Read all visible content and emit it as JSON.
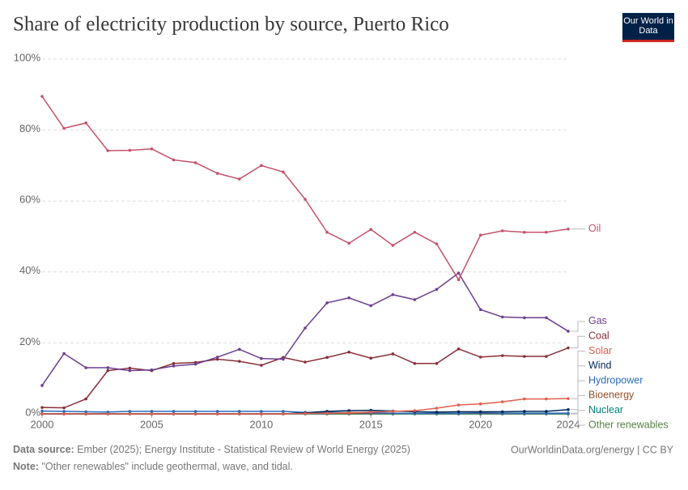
{
  "chart_data": {
    "type": "line",
    "title": "Share of electricity production by source, Puerto Rico",
    "logo": "Our World in Data",
    "x": [
      2000,
      2001,
      2002,
      2003,
      2004,
      2005,
      2006,
      2007,
      2008,
      2009,
      2010,
      2011,
      2012,
      2013,
      2014,
      2015,
      2016,
      2017,
      2018,
      2019,
      2020,
      2021,
      2022,
      2023,
      2024
    ],
    "xlim": [
      2000,
      2024
    ],
    "xticks": [
      2000,
      2005,
      2010,
      2015,
      2020,
      2024
    ],
    "ylim": [
      0,
      100
    ],
    "yticks": [
      {
        "value": 0,
        "label": "0%"
      },
      {
        "value": 20,
        "label": "20%"
      },
      {
        "value": 40,
        "label": "40%"
      },
      {
        "value": 60,
        "label": "60%"
      },
      {
        "value": 80,
        "label": "80%"
      },
      {
        "value": 100,
        "label": "100%"
      }
    ],
    "grid": true,
    "series": [
      {
        "name": "Oil",
        "color": "#c4526a",
        "values": [
          89.5,
          80.5,
          82,
          74.2,
          74.3,
          74.7,
          71.6,
          70.8,
          67.8,
          66.2,
          70,
          68.2,
          60.5,
          51.2,
          48.1,
          52,
          47.5,
          51.2,
          47.9,
          37.8,
          50.4,
          51.6,
          51.2,
          51.2,
          52.1
        ]
      },
      {
        "name": "Gas",
        "color": "#6d3e91",
        "values": [
          8,
          17,
          13,
          13,
          12.2,
          12.4,
          13.5,
          14,
          16,
          18.2,
          15.6,
          15.4,
          24.2,
          31.3,
          32.7,
          30.5,
          33.6,
          32.2,
          35.1,
          39.7,
          29.4,
          27.3,
          27.1,
          27.1,
          23.3
        ]
      },
      {
        "name": "Coal",
        "color": "#883039",
        "values": [
          1.8,
          1.7,
          4.2,
          12.2,
          12.9,
          12.2,
          14.2,
          14.5,
          15.4,
          14.8,
          13.7,
          15.9,
          14.6,
          15.9,
          17.4,
          15.7,
          16.9,
          14.2,
          14.2,
          18.3,
          16,
          16.4,
          16.2,
          16.2,
          18.6
        ]
      },
      {
        "name": "Solar",
        "color": "#e0604d",
        "values": [
          0,
          0,
          0,
          0,
          0,
          0,
          0,
          0,
          0,
          0,
          0,
          0,
          0.1,
          0.2,
          0.3,
          0.5,
          0.7,
          0.9,
          1.6,
          2.5,
          2.8,
          3.4,
          4.2,
          4.2,
          4.3
        ]
      },
      {
        "name": "Wind",
        "color": "#00295b",
        "values": [
          0,
          0,
          0,
          0,
          0,
          0,
          0,
          0,
          0,
          0,
          0,
          0,
          0.3,
          0.7,
          0.9,
          1,
          0.8,
          0.6,
          0.5,
          0.6,
          0.6,
          0.6,
          0.7,
          0.7,
          1.2
        ]
      },
      {
        "name": "Hydropower",
        "color": "#286bbb",
        "values": [
          0.8,
          0.7,
          0.6,
          0.5,
          0.7,
          0.7,
          0.7,
          0.7,
          0.7,
          0.7,
          0.7,
          0.7,
          0.4,
          0.4,
          0.4,
          0.3,
          0.2,
          0.1,
          0.2,
          0.2,
          0.3,
          0.2,
          0.2,
          0.2,
          0.2
        ]
      },
      {
        "name": "Bioenergy",
        "color": "#9a5129",
        "values": [
          0,
          0,
          0,
          0,
          0,
          0,
          0,
          0,
          0,
          0,
          0,
          0,
          0.1,
          0.1,
          0.1,
          0.1,
          0.1,
          0.1,
          0.1,
          0.1,
          0.1,
          0.1,
          0.1,
          0.1,
          0.1
        ]
      },
      {
        "name": "Nuclear",
        "color": "#00847e",
        "values": [
          0,
          0,
          0,
          0,
          0,
          0,
          0,
          0,
          0,
          0,
          0,
          0,
          0,
          0,
          0,
          0,
          0,
          0,
          0,
          0,
          0,
          0,
          0,
          0,
          0
        ]
      },
      {
        "name": "Other renewables",
        "color": "#578145",
        "values": [
          0,
          0,
          0,
          0,
          0,
          0,
          0,
          0,
          0,
          0,
          0,
          0,
          0,
          0,
          0,
          0,
          0,
          0,
          0,
          0,
          0,
          0,
          0,
          0,
          0
        ]
      }
    ],
    "source_label": "Data source:",
    "source": "Ember (2025); Energy Institute - Statistical Review of World Energy (2025)",
    "url": "OurWorldinData.org/energy | CC BY",
    "note_label": "Note:",
    "note": "\"Other renewables\" include geothermal, wave, and tidal."
  }
}
